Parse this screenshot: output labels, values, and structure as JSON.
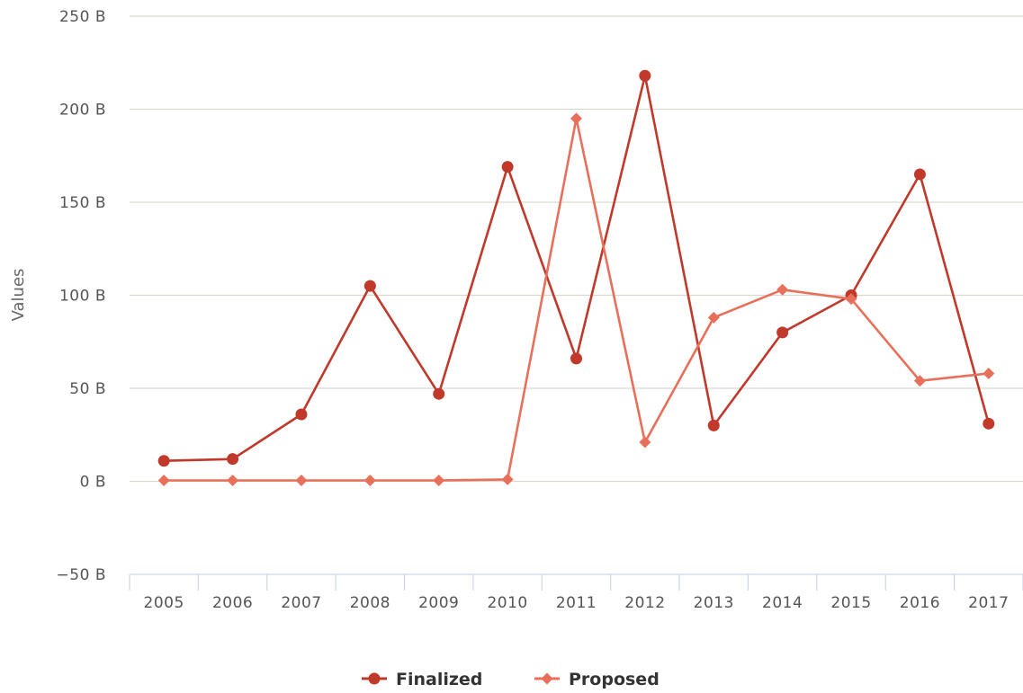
{
  "chart_data": {
    "type": "line",
    "categories": [
      "2005",
      "2006",
      "2007",
      "2008",
      "2009",
      "2010",
      "2011",
      "2012",
      "2013",
      "2014",
      "2015",
      "2016",
      "2017"
    ],
    "series": [
      {
        "name": "Finalized",
        "color": "#c0392b",
        "marker": "circle",
        "values": [
          11,
          12,
          36,
          105,
          47,
          169,
          66,
          218,
          30,
          80,
          100,
          165,
          31
        ]
      },
      {
        "name": "Proposed",
        "color": "#e8705a",
        "marker": "diamond",
        "values": [
          0.5,
          0.5,
          0.5,
          0.5,
          0.5,
          1,
          195,
          21,
          88,
          103,
          98,
          54,
          58
        ]
      }
    ],
    "ylabel": "Values",
    "ylim": [
      -50,
      250
    ],
    "yticks": [
      -50,
      0,
      50,
      100,
      150,
      200,
      250
    ],
    "ytick_labels": [
      "−50 B",
      "0 B",
      "50 B",
      "100 B",
      "150 B",
      "200 B",
      "250 B"
    ],
    "grid": true,
    "legend_position": "bottom-center"
  }
}
